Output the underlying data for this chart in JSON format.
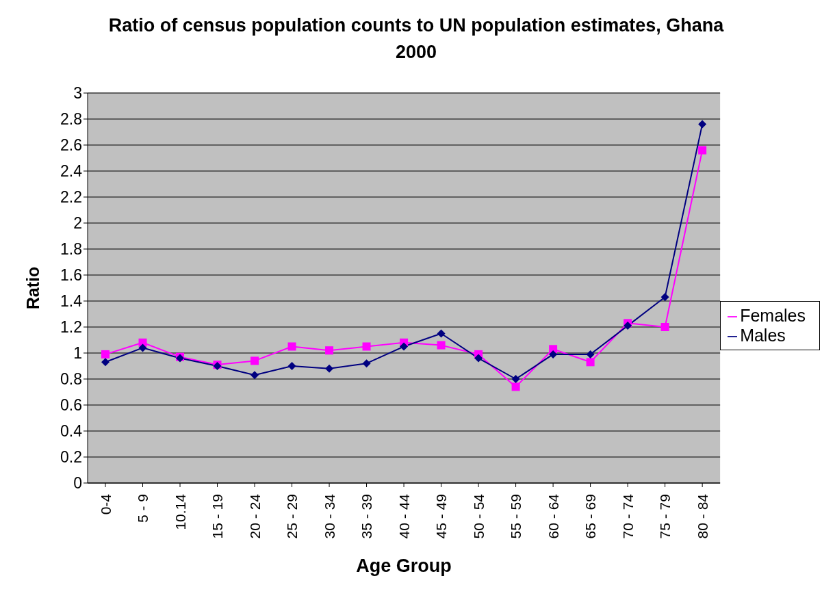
{
  "chart_data": {
    "type": "line",
    "title": "Ratio of census population counts to UN population estimates, Ghana 2000",
    "xlabel": "Age Group",
    "ylabel": "Ratio",
    "categories": [
      "0-4",
      "5 - 9",
      "10.14",
      "15 - 19",
      "20 - 24",
      "25 - 29",
      "30 - 34",
      "35 - 39",
      "40 - 44",
      "45 - 49",
      "50 - 54",
      "55 - 59",
      "60 - 64",
      "65 - 69",
      "70 - 74",
      "75 - 79",
      "80 - 84"
    ],
    "series": [
      {
        "name": "Males",
        "color": "#000080",
        "marker": "diamond",
        "values": [
          0.93,
          1.04,
          0.96,
          0.9,
          0.83,
          0.9,
          0.88,
          0.92,
          1.05,
          1.15,
          0.96,
          0.8,
          0.99,
          0.99,
          1.21,
          1.43,
          2.76
        ]
      },
      {
        "name": "Females",
        "color": "#ff00ff",
        "marker": "square",
        "values": [
          0.99,
          1.08,
          0.97,
          0.91,
          0.94,
          1.05,
          1.02,
          1.05,
          1.08,
          1.06,
          0.99,
          0.74,
          1.03,
          0.93,
          1.23,
          1.2,
          2.56
        ]
      }
    ],
    "ylim": [
      0,
      3
    ],
    "yticks": [
      0,
      0.2,
      0.4,
      0.6,
      0.8,
      1,
      1.2,
      1.4,
      1.6,
      1.8,
      2,
      2.2,
      2.4,
      2.6,
      2.8,
      3
    ],
    "grid": "y",
    "legend": "right",
    "line_style": "solid"
  }
}
